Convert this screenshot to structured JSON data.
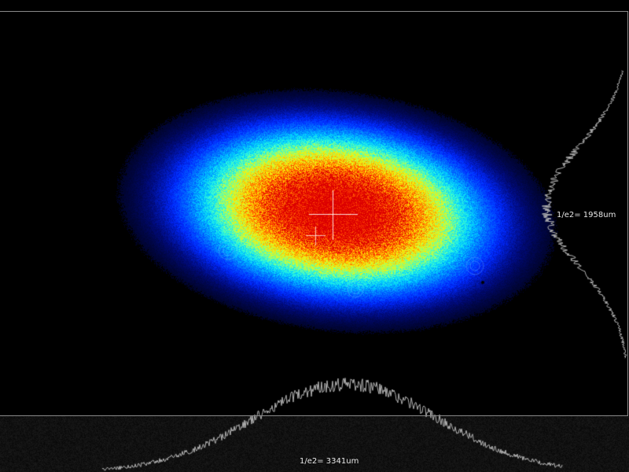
{
  "profiles": {
    "vertical_width_label": "1/e2= 1958um",
    "horizontal_width_label": "1/e2= 3341um"
  },
  "colormap": [
    "#000000",
    "#000a78",
    "#0028ff",
    "#0078ff",
    "#00d2ff",
    "#3cffd2",
    "#c8ff3c",
    "#ffe600",
    "#ff8c00",
    "#ff3c00",
    "#dc0000"
  ],
  "colors": {
    "background": "#000000",
    "frame": "#8a8a8a",
    "profile_trace": "#b4b4b4",
    "crosshair": "#ffffff",
    "label_text": "#e8e8e8",
    "bottom_band": "#101010"
  }
}
